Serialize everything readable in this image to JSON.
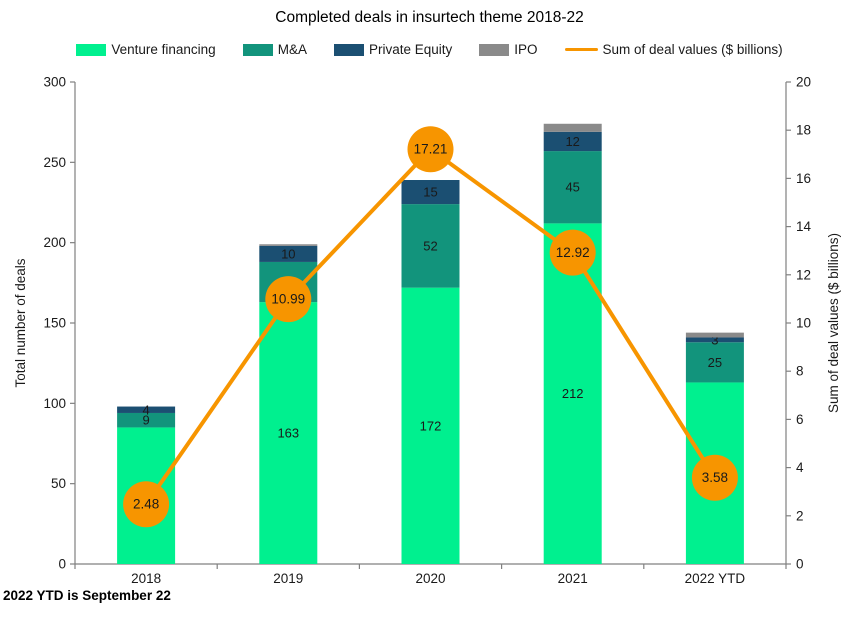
{
  "title": "Completed deals in insurtech theme 2018-22",
  "footnote": "2022 YTD is September 22",
  "colors": {
    "venture_financing": "#00F08F",
    "ma": "#12947C",
    "private_equity": "#1B4F72",
    "ipo": "#8A8A8A",
    "deal_value_line": "#F79500",
    "axis_line": "#808080",
    "tick_text": "#1a1a1a"
  },
  "legend": {
    "items": [
      {
        "label": "Venture financing",
        "color_key": "venture_financing",
        "type": "box"
      },
      {
        "label": "M&A",
        "color_key": "ma",
        "type": "box"
      },
      {
        "label": "Private Equity",
        "color_key": "private_equity",
        "type": "box"
      },
      {
        "label": "IPO",
        "color_key": "ipo",
        "type": "box"
      },
      {
        "label": "Sum of deal values ($ billions)",
        "color_key": "deal_value_line",
        "type": "line"
      }
    ]
  },
  "chart_data": {
    "type": "combo",
    "title": "Completed deals in insurtech theme 2018-22",
    "categories": [
      "2018",
      "2019",
      "2020",
      "2021",
      "2022 YTD"
    ],
    "series": [
      {
        "name": "Venture financing",
        "chart": "bar",
        "stack": true,
        "color_key": "venture_financing",
        "labeled": true,
        "label_color": "#000000",
        "values": [
          85,
          163,
          172,
          212,
          113
        ]
      },
      {
        "name": "M&A",
        "chart": "bar",
        "stack": true,
        "color_key": "ma",
        "labeled": true,
        "label_color": "#FFFFFF",
        "values": [
          9,
          25,
          52,
          45,
          25
        ]
      },
      {
        "name": "Private Equity",
        "chart": "bar",
        "stack": true,
        "color_key": "private_equity",
        "labeled": true,
        "label_color": "#FFFFFF",
        "values": [
          4,
          10,
          15,
          12,
          3
        ]
      },
      {
        "name": "IPO",
        "chart": "bar",
        "stack": true,
        "color_key": "ipo",
        "labeled": false,
        "values": [
          0,
          1,
          0,
          5,
          3
        ]
      },
      {
        "name": "Sum of deal values ($ billions)",
        "chart": "line",
        "axis": "right",
        "color_key": "deal_value_line",
        "labeled": true,
        "label_color": "#000000",
        "values": [
          2.48,
          10.99,
          17.21,
          12.92,
          3.58
        ]
      }
    ],
    "axis_left": {
      "label": "Total number of deals",
      "min": 0,
      "max": 300,
      "ticks": [
        0,
        50,
        100,
        150,
        200,
        250,
        300
      ]
    },
    "axis_right": {
      "label": "Sum of deal values ($ billions)",
      "min": 0,
      "max": 20,
      "ticks": [
        0,
        2,
        4,
        6,
        8,
        10,
        12,
        14,
        16,
        18,
        20
      ]
    },
    "grid": false,
    "legend_position": "top"
  }
}
